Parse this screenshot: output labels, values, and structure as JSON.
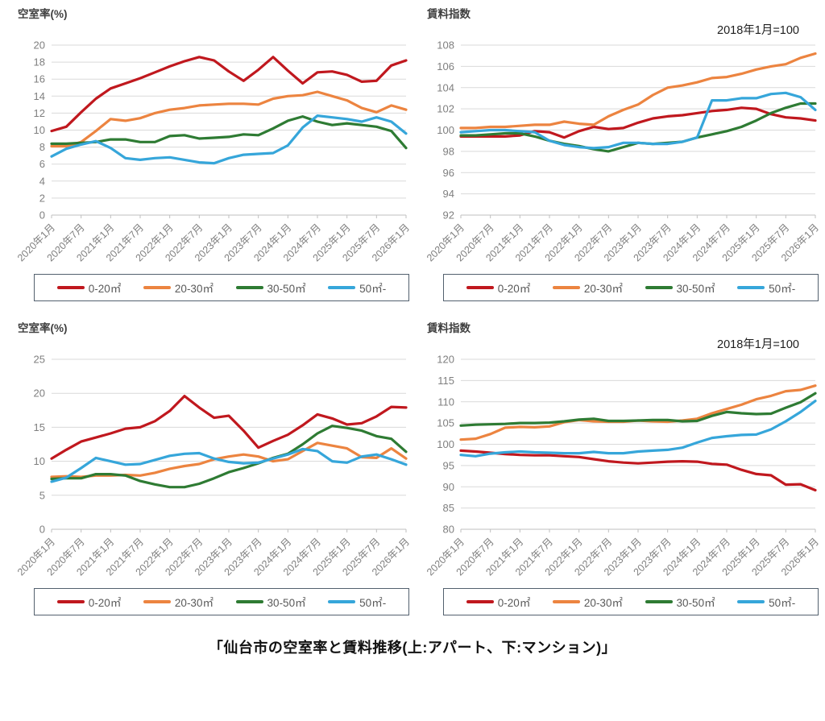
{
  "page": {
    "caption": "「仙台市の空室率と賃料推移(上:アパート、下:マンション)」"
  },
  "legend": {
    "items": [
      {
        "label": "0-20㎡",
        "color": "#C0181E"
      },
      {
        "label": "20-30㎡",
        "color": "#EC8440"
      },
      {
        "label": "30-50㎡",
        "color": "#2E7B33"
      },
      {
        "label": "50㎡-",
        "color": "#36A6DA"
      }
    ]
  },
  "style": {
    "grid_color": "#D9D9D9",
    "axis_color": "#BFBFBF",
    "tick_label_color": "#7F7F7F"
  },
  "chart_data": [
    {
      "id": "apartment-vacancy",
      "type": "line",
      "title": "空室率(%)",
      "annotation": "",
      "ylim": [
        0,
        20
      ],
      "ystep": 2,
      "grid": true,
      "legend_position": "bottom",
      "x_tick_labels": [
        "2020年1月",
        "2020年7月",
        "2021年1月",
        "2021年7月",
        "2022年1月",
        "2022年7月",
        "2023年1月",
        "2023年7月",
        "2024年1月",
        "2024年7月",
        "2025年1月",
        "2025年7月",
        "2026年1月"
      ],
      "x_unit": "quarterly 2020年1月〜2026年1月",
      "series": [
        {
          "name": "0-20㎡",
          "color": "#C0181E",
          "values": [
            9.9,
            10.4,
            12.1,
            13.7,
            14.9,
            15.5,
            16.1,
            16.8,
            17.5,
            18.1,
            18.6,
            18.2,
            16.9,
            15.8,
            17.1,
            18.6,
            17.0,
            15.5,
            16.8,
            16.9,
            16.5,
            15.7,
            15.8,
            17.6,
            18.2
          ]
        },
        {
          "name": "20-30㎡",
          "color": "#EC8440",
          "values": [
            8.1,
            8.1,
            8.6,
            9.9,
            11.3,
            11.1,
            11.4,
            12.0,
            12.4,
            12.6,
            12.9,
            13.0,
            13.1,
            13.1,
            13.0,
            13.7,
            14.0,
            14.1,
            14.5,
            14.0,
            13.5,
            12.6,
            12.1,
            12.9,
            12.4
          ]
        },
        {
          "name": "30-50㎡",
          "color": "#2E7B33",
          "values": [
            8.4,
            8.4,
            8.5,
            8.6,
            8.9,
            8.9,
            8.6,
            8.6,
            9.3,
            9.4,
            9.0,
            9.1,
            9.2,
            9.5,
            9.4,
            10.2,
            11.1,
            11.6,
            11.0,
            10.6,
            10.8,
            10.6,
            10.4,
            9.9,
            7.9
          ]
        },
        {
          "name": "50㎡-",
          "color": "#36A6DA",
          "values": [
            6.9,
            7.8,
            8.3,
            8.7,
            7.9,
            6.7,
            6.5,
            6.7,
            6.8,
            6.5,
            6.2,
            6.1,
            6.7,
            7.1,
            7.2,
            7.3,
            8.2,
            10.3,
            11.7,
            11.5,
            11.3,
            11.0,
            11.5,
            11.0,
            9.6
          ]
        }
      ]
    },
    {
      "id": "apartment-rent",
      "type": "line",
      "title": "賃料指数",
      "annotation": "2018年1月=100",
      "ylim": [
        92,
        108
      ],
      "ystep": 2,
      "grid": true,
      "legend_position": "bottom",
      "x_tick_labels": [
        "2020年1月",
        "2020年7月",
        "2021年1月",
        "2021年7月",
        "2022年1月",
        "2022年7月",
        "2023年1月",
        "2023年7月",
        "2024年1月",
        "2024年7月",
        "2025年1月",
        "2025年7月",
        "2026年1月"
      ],
      "x_unit": "quarterly 2020年1月〜2026年1月",
      "series": [
        {
          "name": "0-20㎡",
          "color": "#C0181E",
          "values": [
            99.4,
            99.4,
            99.4,
            99.4,
            99.5,
            99.9,
            99.8,
            99.3,
            99.9,
            100.3,
            100.1,
            100.2,
            100.7,
            101.1,
            101.3,
            101.4,
            101.6,
            101.8,
            101.9,
            102.1,
            102.0,
            101.5,
            101.2,
            101.1,
            100.9
          ]
        },
        {
          "name": "20-30㎡",
          "color": "#EC8440",
          "values": [
            100.2,
            100.2,
            100.3,
            100.3,
            100.4,
            100.5,
            100.5,
            100.8,
            100.6,
            100.5,
            101.3,
            101.9,
            102.4,
            103.3,
            104.0,
            104.2,
            104.5,
            104.9,
            105.0,
            105.3,
            105.7,
            106.0,
            106.2,
            106.8,
            107.2
          ]
        },
        {
          "name": "30-50㎡",
          "color": "#2E7B33",
          "values": [
            99.5,
            99.5,
            99.6,
            99.7,
            99.7,
            99.4,
            99.0,
            98.7,
            98.5,
            98.2,
            98.0,
            98.4,
            98.8,
            98.7,
            98.8,
            98.9,
            99.3,
            99.6,
            99.9,
            100.3,
            100.9,
            101.6,
            102.1,
            102.5,
            102.5
          ]
        },
        {
          "name": "50㎡-",
          "color": "#36A6DA",
          "values": [
            99.8,
            99.9,
            100.0,
            100.0,
            99.9,
            99.8,
            99.0,
            98.6,
            98.4,
            98.3,
            98.4,
            98.8,
            98.8,
            98.7,
            98.7,
            98.9,
            99.3,
            102.8,
            102.8,
            103.0,
            103.0,
            103.4,
            103.5,
            103.1,
            101.9
          ]
        }
      ]
    },
    {
      "id": "mansion-vacancy",
      "type": "line",
      "title": "空室率(%)",
      "annotation": "",
      "ylim": [
        0,
        25
      ],
      "ystep": 5,
      "grid": true,
      "legend_position": "bottom",
      "x_tick_labels": [
        "2020年1月",
        "2020年7月",
        "2021年1月",
        "2021年7月",
        "2022年1月",
        "2022年7月",
        "2023年1月",
        "2023年7月",
        "2024年1月",
        "2024年7月",
        "2025年1月",
        "2025年7月",
        "2026年1月"
      ],
      "x_unit": "quarterly 2020年1月〜2026年1月",
      "series": [
        {
          "name": "0-20㎡",
          "color": "#C0181E",
          "values": [
            10.4,
            11.7,
            12.9,
            13.5,
            14.1,
            14.8,
            15.0,
            15.9,
            17.4,
            19.6,
            17.9,
            16.4,
            16.7,
            14.5,
            12.0,
            13.0,
            13.9,
            15.3,
            16.9,
            16.3,
            15.4,
            15.6,
            16.6,
            18.0,
            17.9
          ]
        },
        {
          "name": "20-30㎡",
          "color": "#EC8440",
          "values": [
            7.7,
            7.8,
            7.7,
            7.9,
            7.9,
            8.0,
            7.9,
            8.3,
            8.9,
            9.3,
            9.6,
            10.3,
            10.7,
            11.0,
            10.7,
            10.0,
            10.3,
            11.5,
            12.7,
            12.3,
            11.9,
            10.6,
            10.5,
            11.9,
            10.4
          ]
        },
        {
          "name": "30-50㎡",
          "color": "#2E7B33",
          "values": [
            7.4,
            7.5,
            7.5,
            8.1,
            8.1,
            7.9,
            7.1,
            6.6,
            6.2,
            6.2,
            6.7,
            7.5,
            8.4,
            9.0,
            9.7,
            10.5,
            11.1,
            12.5,
            14.1,
            15.2,
            14.9,
            14.5,
            13.7,
            13.3,
            11.4
          ]
        },
        {
          "name": "50㎡-",
          "color": "#36A6DA",
          "values": [
            7.0,
            7.6,
            9.0,
            10.5,
            10.0,
            9.5,
            9.6,
            10.2,
            10.8,
            11.1,
            11.2,
            10.4,
            9.9,
            9.7,
            9.8,
            10.4,
            11.0,
            11.8,
            11.5,
            10.0,
            9.8,
            10.7,
            11.0,
            10.3,
            9.5
          ]
        }
      ]
    },
    {
      "id": "mansion-rent",
      "type": "line",
      "title": "賃料指数",
      "annotation": "2018年1月=100",
      "ylim": [
        80,
        120
      ],
      "ystep": 5,
      "grid": true,
      "legend_position": "bottom",
      "x_tick_labels": [
        "2020年1月",
        "2020年7月",
        "2021年1月",
        "2021年7月",
        "2022年1月",
        "2022年7月",
        "2023年1月",
        "2023年7月",
        "2024年1月",
        "2024年7月",
        "2025年1月",
        "2025年7月",
        "2026年1月"
      ],
      "x_unit": "quarterly 2020年1月〜2026年1月",
      "series": [
        {
          "name": "0-20㎡",
          "color": "#C0181E",
          "values": [
            98.5,
            98.3,
            98.0,
            97.7,
            97.5,
            97.4,
            97.4,
            97.2,
            97.0,
            96.5,
            96.0,
            95.7,
            95.5,
            95.7,
            95.9,
            96.0,
            95.9,
            95.4,
            95.2,
            94.0,
            93.0,
            92.7,
            90.5,
            90.6,
            89.2
          ]
        },
        {
          "name": "20-30㎡",
          "color": "#EC8440",
          "values": [
            101.1,
            101.3,
            102.4,
            103.9,
            104.1,
            104.0,
            104.2,
            105.2,
            105.7,
            105.4,
            105.3,
            105.3,
            105.6,
            105.4,
            105.3,
            105.6,
            106.0,
            107.3,
            108.3,
            109.3,
            110.6,
            111.4,
            112.5,
            112.8,
            113.8
          ]
        },
        {
          "name": "30-50㎡",
          "color": "#2E7B33",
          "values": [
            104.4,
            104.6,
            104.7,
            104.8,
            105.0,
            105.0,
            105.1,
            105.4,
            105.8,
            106.0,
            105.5,
            105.5,
            105.6,
            105.7,
            105.7,
            105.4,
            105.5,
            106.7,
            107.6,
            107.3,
            107.1,
            107.2,
            108.6,
            109.9,
            112.0
          ]
        },
        {
          "name": "50㎡-",
          "color": "#36A6DA",
          "values": [
            97.5,
            97.2,
            97.8,
            98.1,
            98.3,
            98.1,
            98.0,
            97.9,
            97.9,
            98.2,
            97.9,
            97.9,
            98.3,
            98.5,
            98.7,
            99.2,
            100.4,
            101.5,
            101.9,
            102.2,
            102.3,
            103.5,
            105.4,
            107.6,
            110.2
          ]
        }
      ]
    }
  ]
}
